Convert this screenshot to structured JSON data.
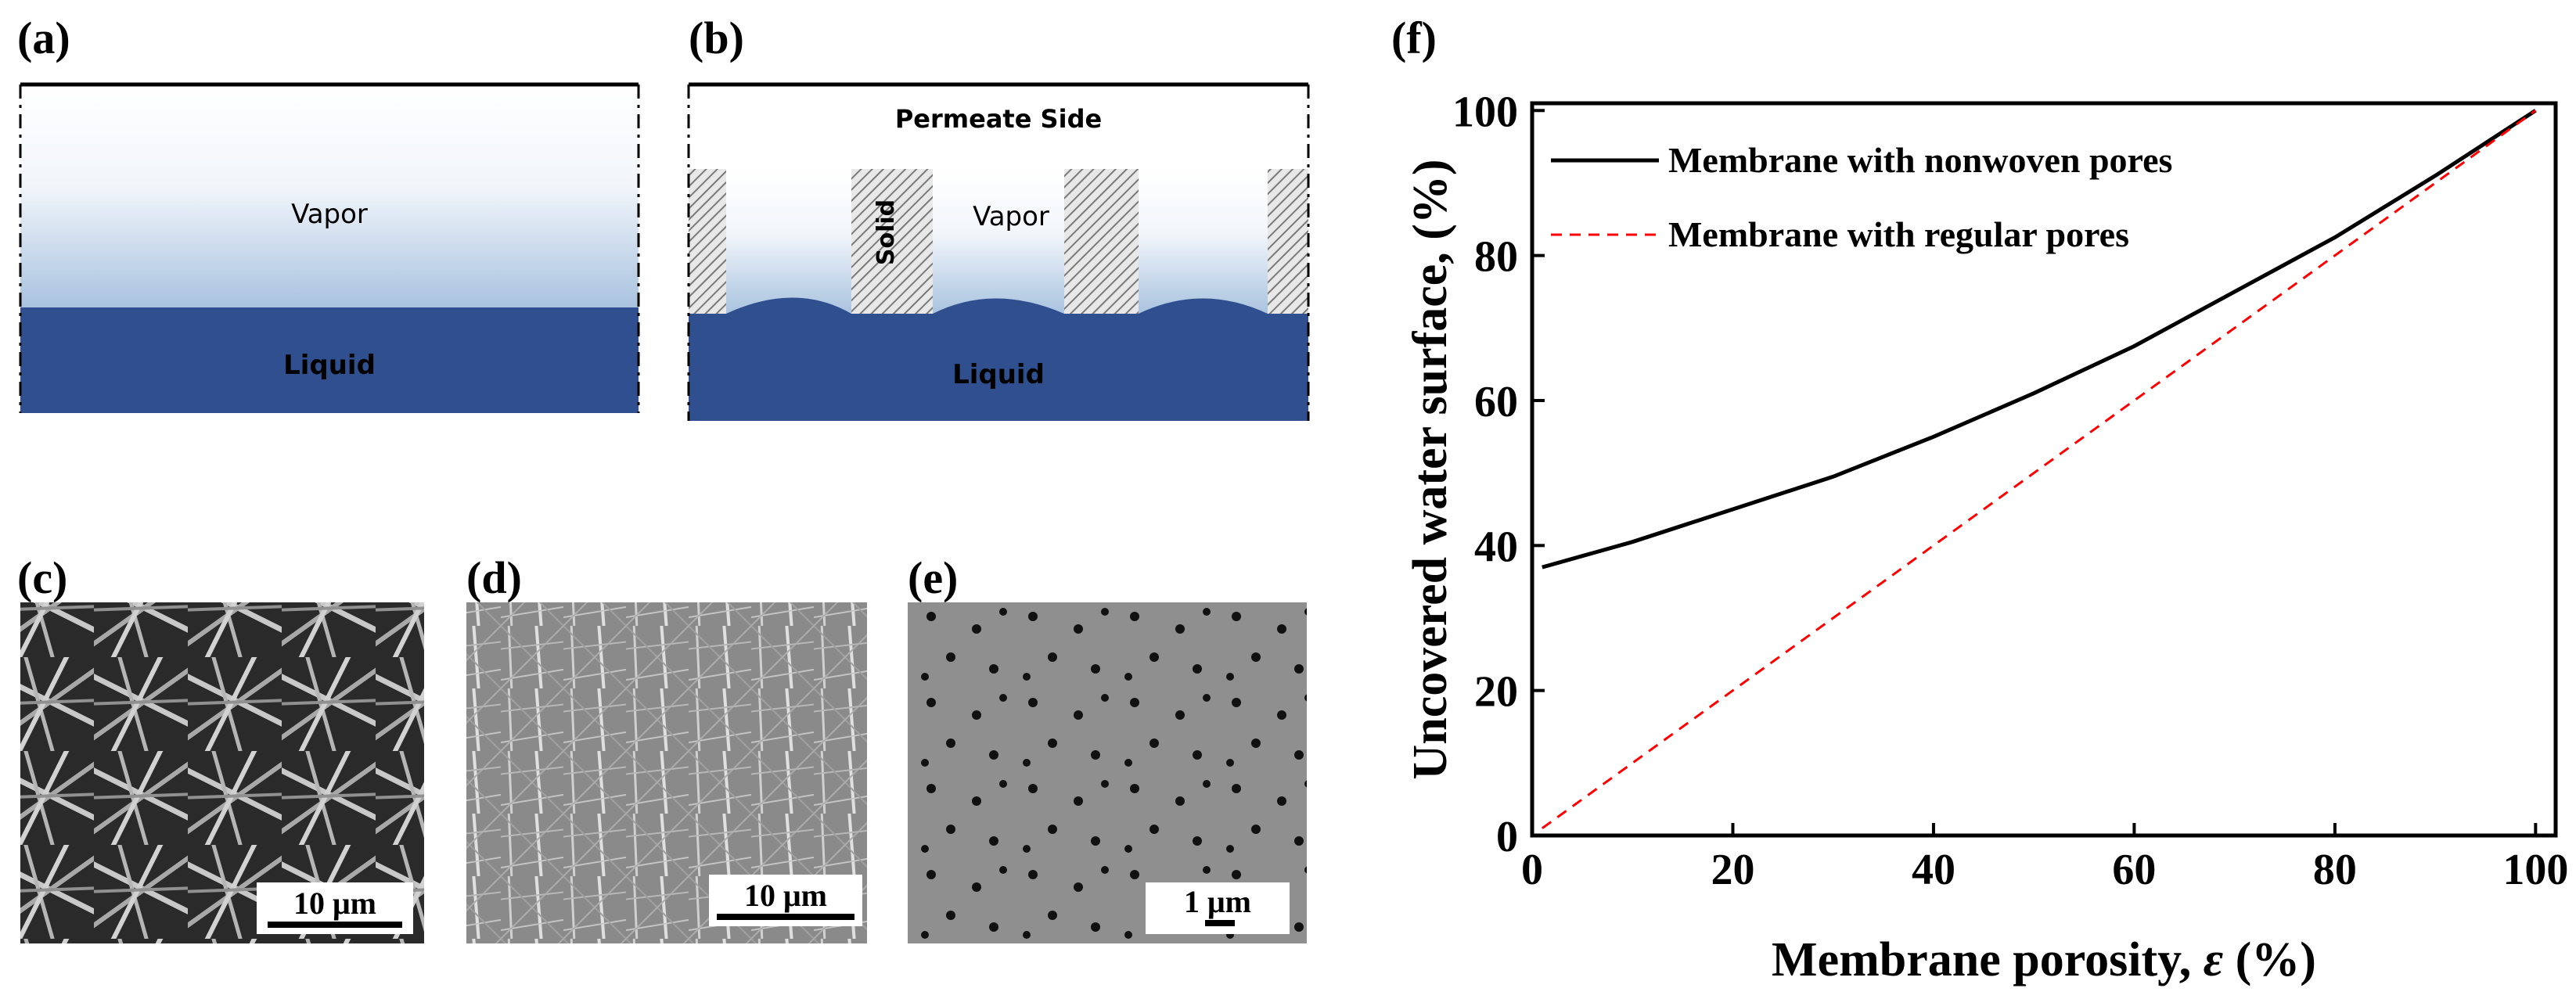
{
  "panels": {
    "a": {
      "label": "(a)",
      "vapor": "Vapor",
      "liquid": "Liquid"
    },
    "b": {
      "label": "(b)",
      "permeate": "Permeate Side",
      "solid": "Solid",
      "vapor": "Vapor",
      "liquid": "Liquid"
    },
    "c": {
      "label": "(c)",
      "scale": "10 μm"
    },
    "d": {
      "label": "(d)",
      "scale": "10 μm"
    },
    "e": {
      "label": "(e)",
      "scale": "1 μm"
    },
    "f": {
      "label": "(f)"
    }
  },
  "colors": {
    "liquid": "#2f4f8f",
    "vapor_light": "#dbe6f3",
    "solid_hatch": "#8a8a8a",
    "series_nonwoven": "#000000",
    "series_regular": "#ff0000"
  },
  "chart_data": {
    "type": "line",
    "xlabel_main": "Membrane porosity, ",
    "xlabel_symbol": "ε",
    "xlabel_unit": " (%)",
    "ylabel": "Uncovered water surface, (%)",
    "xlim": [
      0,
      102
    ],
    "ylim": [
      0,
      101
    ],
    "xticks": [
      0,
      20,
      40,
      60,
      80,
      100
    ],
    "yticks": [
      0,
      20,
      40,
      60,
      80,
      100
    ],
    "legend": "top-left",
    "series": [
      {
        "name": "Membrane with nonwoven pores",
        "style": "solid",
        "x": [
          1,
          10,
          20,
          30,
          40,
          50,
          60,
          70,
          80,
          90,
          100
        ],
        "y": [
          37,
          40.5,
          45,
          49.5,
          55,
          61,
          67.5,
          75,
          82.5,
          91,
          100
        ]
      },
      {
        "name": "Membrane with regular pores",
        "style": "dashed",
        "x": [
          1,
          100
        ],
        "y": [
          1,
          100
        ]
      }
    ]
  }
}
